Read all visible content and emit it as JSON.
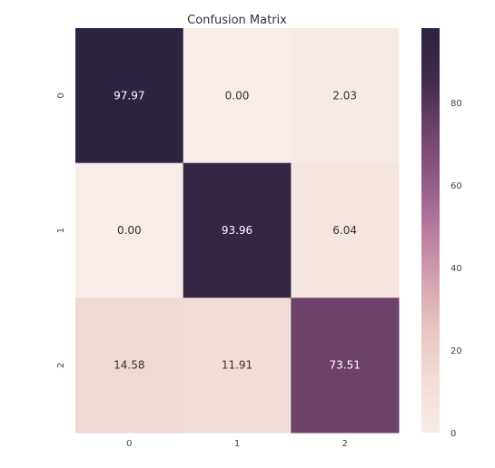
{
  "chart_data": {
    "type": "heatmap",
    "title": "Confusion Matrix",
    "x_tick_labels": [
      "0",
      "1",
      "2"
    ],
    "y_tick_labels": [
      "0",
      "1",
      "2"
    ],
    "values": [
      [
        97.97,
        0.0,
        2.03
      ],
      [
        0.0,
        93.96,
        6.04
      ],
      [
        14.58,
        11.91,
        73.51
      ]
    ],
    "value_labels": [
      [
        "97.97",
        "0.00",
        "2.03"
      ],
      [
        "0.00",
        "93.96",
        "6.04"
      ],
      [
        "14.58",
        "11.91",
        "73.51"
      ]
    ],
    "colorbar": {
      "range": [
        0,
        97.97
      ],
      "ticks": [
        0,
        20,
        40,
        60,
        80
      ],
      "tick_labels": [
        "0",
        "20",
        "40",
        "60",
        "80"
      ]
    },
    "color_scale": [
      "#f7ece8",
      "#f2ddd6",
      "#e9c6c1",
      "#d4a3b1",
      "#b97b9f",
      "#8f5a86",
      "#6e416b",
      "#3f2a4c",
      "#2d2240"
    ],
    "grid": false
  }
}
